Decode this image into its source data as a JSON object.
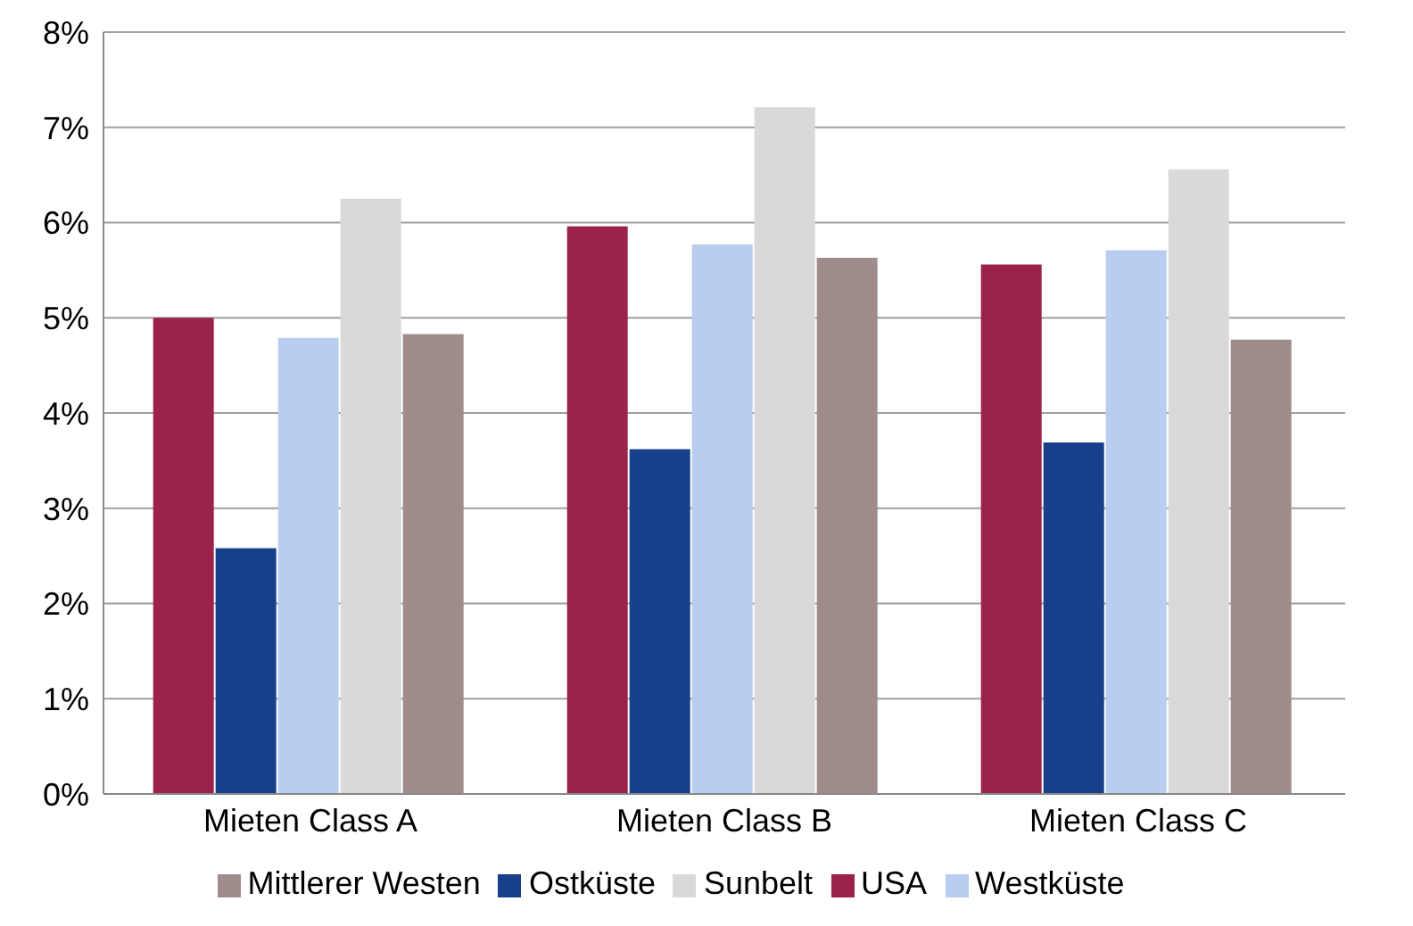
{
  "chart_data": {
    "type": "bar",
    "categories": [
      "Mieten Class A",
      "Mieten Class B",
      "Mieten Class C"
    ],
    "series": [
      {
        "name": "USA",
        "color": "#9b2248",
        "values": [
          5.0,
          5.96,
          5.56
        ]
      },
      {
        "name": "Ostküste",
        "color": "#173f8a",
        "values": [
          2.58,
          3.62,
          3.69
        ]
      },
      {
        "name": "Westküste",
        "color": "#b9cdf0",
        "values": [
          4.79,
          5.77,
          5.71
        ]
      },
      {
        "name": "Sunbelt",
        "color": "#d9d9d9",
        "values": [
          6.25,
          7.21,
          6.56
        ]
      },
      {
        "name": "Mittlerer Westen",
        "color": "#a08c8a",
        "values": [
          4.83,
          5.63,
          4.77
        ]
      }
    ],
    "ylim": [
      0,
      8
    ],
    "yticks": [
      {
        "value": 0,
        "label": "0%"
      },
      {
        "value": 1,
        "label": "1%"
      },
      {
        "value": 2,
        "label": "2%"
      },
      {
        "value": 3,
        "label": "3%"
      },
      {
        "value": 4,
        "label": "4%"
      },
      {
        "value": 5,
        "label": "5%"
      },
      {
        "value": 6,
        "label": "6%"
      },
      {
        "value": 7,
        "label": "7%"
      },
      {
        "value": 8,
        "label": "8%"
      }
    ],
    "grid": "y",
    "legend": "bottom"
  }
}
